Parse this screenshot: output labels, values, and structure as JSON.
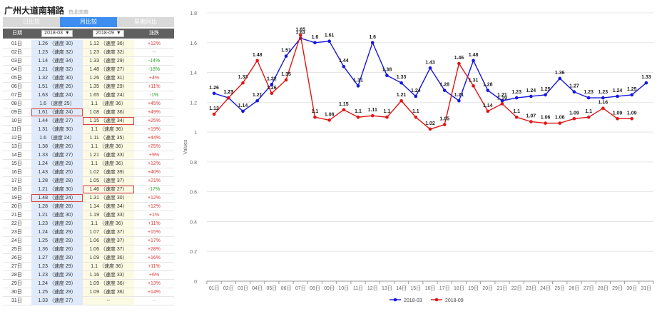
{
  "header": {
    "title": "广州大道南辅路",
    "subtitle": "由北向南"
  },
  "tabs": [
    {
      "label": "日比较",
      "active": false
    },
    {
      "label": "月比较",
      "active": true
    },
    {
      "label": "星期同比",
      "active": false
    }
  ],
  "table": {
    "col_date": "日期",
    "col_a_value": "2018-03",
    "col_b_value": "2018-09",
    "col_change": "涨跌",
    "rows": [
      {
        "date": "01日",
        "a": "1.26 （速度 30）",
        "b": "1.12 （速度 36）",
        "change": "+12%",
        "dir": "up",
        "ha": false,
        "hb": false
      },
      {
        "date": "02日",
        "a": "1.23 （速度 32）",
        "b": "1.23 （速度 32）",
        "change": "--",
        "dir": "flat",
        "ha": false,
        "hb": false
      },
      {
        "date": "03日",
        "a": "1.14 （速度 34）",
        "b": "1.33 （速度 29）",
        "change": "-14%",
        "dir": "down",
        "ha": false,
        "hb": false
      },
      {
        "date": "04日",
        "a": "1.21 （速度 32）",
        "b": "1.48 （速度 27）",
        "change": "-18%",
        "dir": "down",
        "ha": false,
        "hb": false
      },
      {
        "date": "05日",
        "a": "1.32 （速度 30）",
        "b": "1.26 （速度 31）",
        "change": "+4%",
        "dir": "up",
        "ha": false,
        "hb": false
      },
      {
        "date": "06日",
        "a": "1.51 （速度 26）",
        "b": "1.35 （速度 29）",
        "change": "+11%",
        "dir": "up",
        "ha": false,
        "hb": false
      },
      {
        "date": "07日",
        "a": "1.63 （速度 24）",
        "b": "1.65 （速度 24）",
        "change": "-1%",
        "dir": "down",
        "ha": false,
        "hb": false
      },
      {
        "date": "08日",
        "a": "1.6 （速度 25）",
        "b": "1.1 （速度 36）",
        "change": "+45%",
        "dir": "up",
        "ha": false,
        "hb": false
      },
      {
        "date": "09日",
        "a": "1.61 （速度 24）",
        "b": "1.08 （速度 36）",
        "change": "+49%",
        "dir": "up",
        "ha": true,
        "hb": false
      },
      {
        "date": "10日",
        "a": "1.44 （速度 27）",
        "b": "1.15 （速度 34）",
        "change": "+25%",
        "dir": "up",
        "ha": false,
        "hb": true
      },
      {
        "date": "11日",
        "a": "1.31 （速度 30）",
        "b": "1.1 （速度 36）",
        "change": "+19%",
        "dir": "up",
        "ha": false,
        "hb": false
      },
      {
        "date": "12日",
        "a": "1.6 （速度 24）",
        "b": "1.11 （速度 35）",
        "change": "+44%",
        "dir": "up",
        "ha": false,
        "hb": false
      },
      {
        "date": "13日",
        "a": "1.38 （速度 26）",
        "b": "1.1 （速度 36）",
        "change": "+25%",
        "dir": "up",
        "ha": false,
        "hb": false
      },
      {
        "date": "14日",
        "a": "1.33 （速度 27）",
        "b": "1.21 （速度 33）",
        "change": "+9%",
        "dir": "up",
        "ha": false,
        "hb": false
      },
      {
        "date": "15日",
        "a": "1.24 （速度 29）",
        "b": "1.1 （速度 36）",
        "change": "+12%",
        "dir": "up",
        "ha": false,
        "hb": false
      },
      {
        "date": "16日",
        "a": "1.43 （速度 25）",
        "b": "1.02 （速度 39）",
        "change": "+40%",
        "dir": "up",
        "ha": false,
        "hb": false
      },
      {
        "date": "17日",
        "a": "1.28 （速度 28）",
        "b": "1.05 （速度 37）",
        "change": "+21%",
        "dir": "up",
        "ha": false,
        "hb": false
      },
      {
        "date": "18日",
        "a": "1.21 （速度 30）",
        "b": "1.46 （速度 27）",
        "change": "-17%",
        "dir": "down",
        "ha": false,
        "hb": true
      },
      {
        "date": "19日",
        "a": "1.48 （速度 24）",
        "b": "1.31 （速度 30）",
        "change": "+12%",
        "dir": "up",
        "ha": true,
        "hb": false
      },
      {
        "date": "20日",
        "a": "1.28 （速度 28）",
        "b": "1.14 （速度 34）",
        "change": "+12%",
        "dir": "up",
        "ha": false,
        "hb": false
      },
      {
        "date": "21日",
        "a": "1.21 （速度 30）",
        "b": "1.19 （速度 33）",
        "change": "+1%",
        "dir": "up",
        "ha": false,
        "hb": false
      },
      {
        "date": "22日",
        "a": "1.23 （速度 29）",
        "b": "1.1 （速度 36）",
        "change": "+11%",
        "dir": "up",
        "ha": false,
        "hb": false
      },
      {
        "date": "23日",
        "a": "1.24 （速度 29）",
        "b": "1.07 （速度 37）",
        "change": "+15%",
        "dir": "up",
        "ha": false,
        "hb": false
      },
      {
        "date": "24日",
        "a": "1.25 （速度 29）",
        "b": "1.06 （速度 37）",
        "change": "+17%",
        "dir": "up",
        "ha": false,
        "hb": false
      },
      {
        "date": "25日",
        "a": "1.36 （速度 26）",
        "b": "1.06 （速度 37）",
        "change": "+28%",
        "dir": "up",
        "ha": false,
        "hb": false
      },
      {
        "date": "26日",
        "a": "1.27 （速度 28）",
        "b": "1.09 （速度 36）",
        "change": "+16%",
        "dir": "up",
        "ha": false,
        "hb": false
      },
      {
        "date": "27日",
        "a": "1.23 （速度 29）",
        "b": "1.1 （速度 36）",
        "change": "+11%",
        "dir": "up",
        "ha": false,
        "hb": false
      },
      {
        "date": "28日",
        "a": "1.23 （速度 29）",
        "b": "1.16 （速度 33）",
        "change": "+6%",
        "dir": "up",
        "ha": false,
        "hb": false
      },
      {
        "date": "29日",
        "a": "1.24 （速度 29）",
        "b": "1.09 （速度 36）",
        "change": "+13%",
        "dir": "up",
        "ha": false,
        "hb": false
      },
      {
        "date": "30日",
        "a": "1.25 （速度 29）",
        "b": "1.09 （速度 36）",
        "change": "+14%",
        "dir": "up",
        "ha": false,
        "hb": false
      },
      {
        "date": "31日",
        "a": "1.33 （速度 27）",
        "b": "--",
        "change": "--",
        "dir": "flat",
        "ha": false,
        "hb": false
      }
    ]
  },
  "chart_data": {
    "type": "line",
    "title": "",
    "xlabel": "",
    "ylabel": "Values",
    "ylim": [
      0,
      1.8
    ],
    "yticks": [
      "0",
      "0.2",
      "0.4",
      "0.6",
      "0.8",
      "1",
      "1.2",
      "1.4",
      "1.6",
      "1.8"
    ],
    "grid": true,
    "legend": "bottom-center",
    "categories": [
      "01日",
      "02日",
      "03日",
      "04日",
      "05日",
      "06日",
      "07日",
      "08日",
      "09日",
      "10日",
      "11日",
      "12日",
      "13日",
      "14日",
      "15日",
      "16日",
      "17日",
      "18日",
      "19日",
      "20日",
      "21日",
      "22日",
      "23日",
      "24日",
      "25日",
      "26日",
      "27日",
      "28日",
      "29日",
      "30日",
      "31日"
    ],
    "series": [
      {
        "name": "2018-03",
        "color": "#1515e0",
        "values": [
          1.26,
          1.23,
          1.14,
          1.21,
          1.32,
          1.51,
          1.63,
          1.6,
          1.61,
          1.44,
          1.31,
          1.6,
          1.38,
          1.33,
          1.24,
          1.43,
          1.28,
          1.21,
          1.48,
          1.28,
          1.21,
          1.23,
          1.24,
          1.25,
          1.36,
          1.27,
          1.23,
          1.23,
          1.24,
          1.25,
          1.33
        ]
      },
      {
        "name": "2018-09",
        "color": "#e01515",
        "values": [
          1.12,
          1.23,
          1.33,
          1.48,
          1.26,
          1.35,
          1.65,
          1.1,
          1.08,
          1.15,
          1.1,
          1.11,
          1.1,
          1.21,
          1.1,
          1.02,
          1.05,
          1.46,
          1.31,
          1.14,
          1.19,
          1.1,
          1.07,
          1.06,
          1.06,
          1.09,
          1.1,
          1.16,
          1.09,
          1.09,
          null
        ]
      }
    ]
  }
}
